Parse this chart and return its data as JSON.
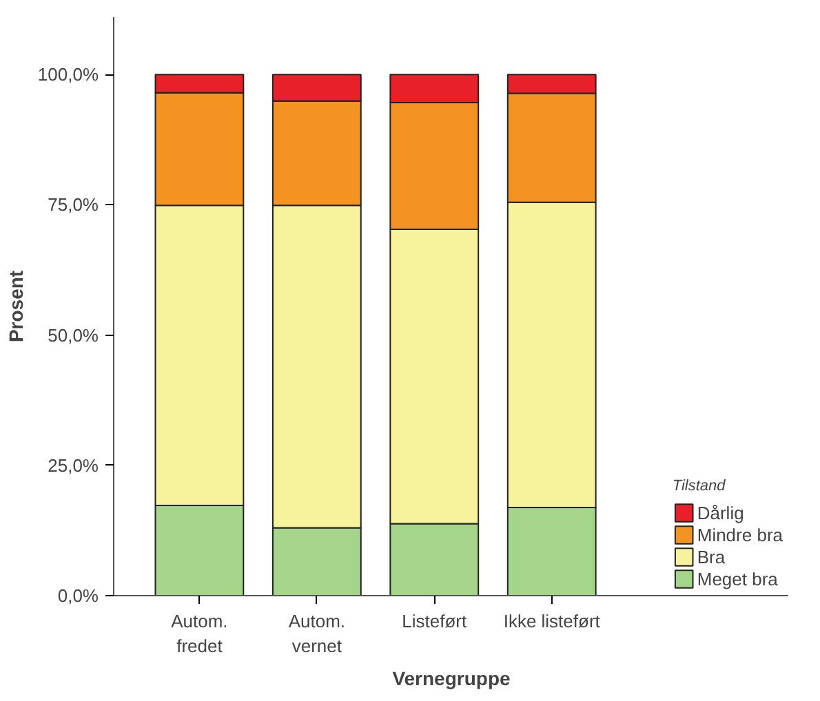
{
  "chart_data": {
    "type": "bar",
    "stacked": true,
    "xlabel": "Vernegruppe",
    "ylabel": "Prosent",
    "legend_title": "Tilstand",
    "legend": "bottom right",
    "grid": false,
    "categories": [
      "Autom.\nfredet",
      "Autom.\nvernet",
      "Listeført",
      "Ikke listeført"
    ],
    "ylim": [
      0,
      111
    ],
    "yticks": [
      {
        "value": 0,
        "label": "0,0%"
      },
      {
        "value": 25,
        "label": "25,0%"
      },
      {
        "value": 50,
        "label": "50,0%"
      },
      {
        "value": 75,
        "label": "75,0%"
      },
      {
        "value": 100,
        "label": "100,0%"
      }
    ],
    "series": [
      {
        "name": "Meget bra",
        "color": "#a5d58a",
        "values": [
          17.3,
          13.0,
          13.8,
          16.9
        ]
      },
      {
        "name": "Bra",
        "color": "#f7f29c",
        "values": [
          57.6,
          61.9,
          56.5,
          58.6
        ]
      },
      {
        "name": "Mindre bra",
        "color": "#f39422",
        "values": [
          21.6,
          20.0,
          24.3,
          20.9
        ]
      },
      {
        "name": "Dårlig",
        "color": "#e8202a",
        "values": [
          3.5,
          5.1,
          5.4,
          3.6
        ]
      }
    ]
  }
}
